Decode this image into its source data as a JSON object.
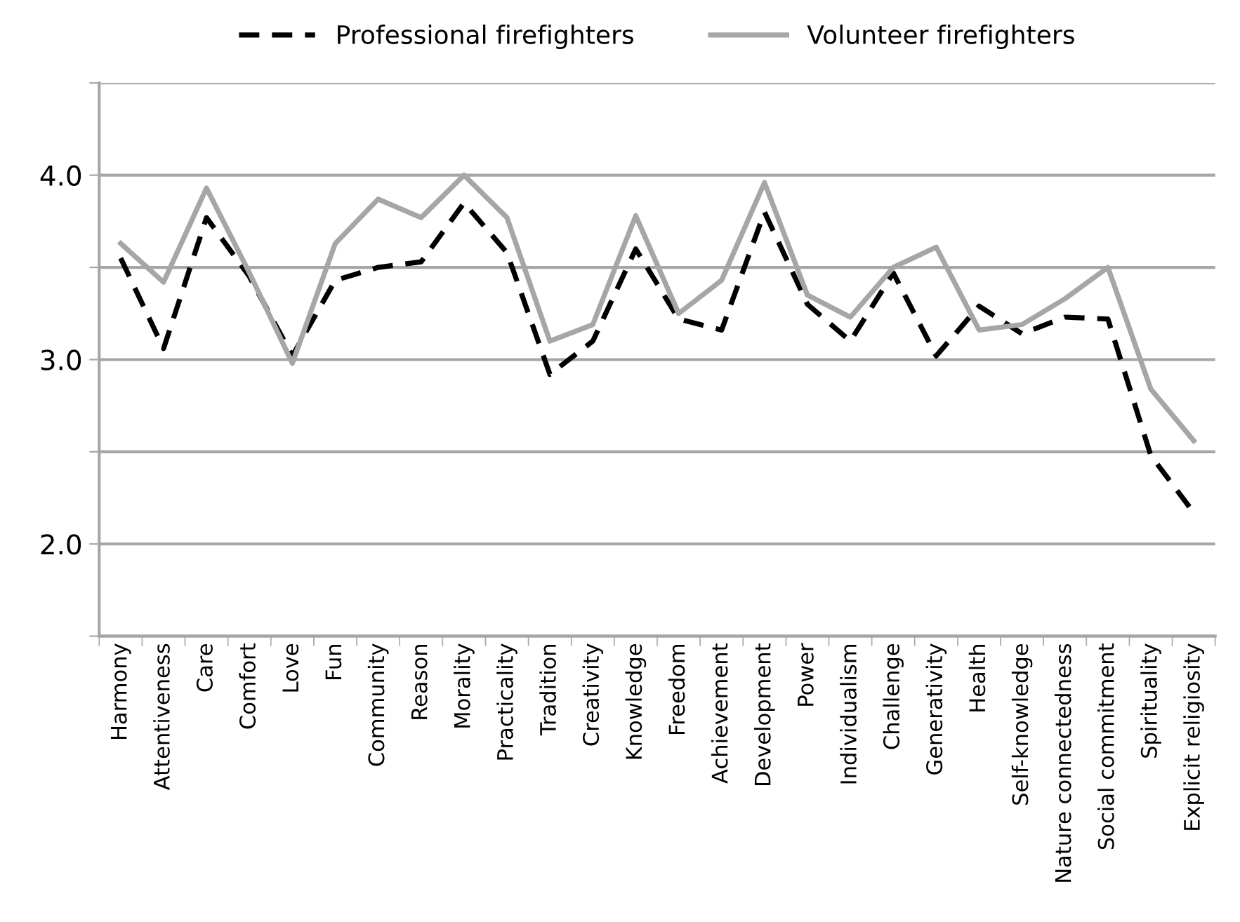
{
  "chart_data": {
    "type": "line",
    "categories": [
      "Harmony",
      "Attentiveness",
      "Care",
      "Comfort",
      "Love",
      "Fun",
      "Community",
      "Reason",
      "Morality",
      "Practicality",
      "Tradition",
      "Creativity",
      "Knowledge",
      "Freedom",
      "Achievement",
      "Development",
      "Power",
      "Individualism",
      "Challenge",
      "Generativity",
      "Health",
      "Self-knowledge",
      "Nature connectedness",
      "Social commitment",
      "Spirituality",
      "Explicit religiosity"
    ],
    "series": [
      {
        "name": "Professional firefighters",
        "color": "#000000",
        "line_style": "dashed",
        "values": [
          3.55,
          3.06,
          3.77,
          3.45,
          3.02,
          3.43,
          3.5,
          3.53,
          3.85,
          3.58,
          2.92,
          3.1,
          3.6,
          3.22,
          3.16,
          3.8,
          3.3,
          3.1,
          3.47,
          3.02,
          3.29,
          3.14,
          3.23,
          3.22,
          2.48,
          2.17
        ]
      },
      {
        "name": "Volunteer firefighters",
        "color": "#a6a6a6",
        "line_style": "solid",
        "values": [
          3.63,
          3.42,
          3.93,
          3.47,
          2.98,
          3.63,
          3.87,
          3.77,
          4.0,
          3.77,
          3.1,
          3.19,
          3.78,
          3.25,
          3.43,
          3.96,
          3.35,
          3.23,
          3.5,
          3.61,
          3.16,
          3.19,
          3.33,
          3.5,
          2.84,
          2.56
        ]
      }
    ],
    "ylim": [
      1.5,
      4.5
    ],
    "yticks": [
      {
        "value": 1.5,
        "label": null
      },
      {
        "value": 2.0,
        "label": "2.0"
      },
      {
        "value": 2.5,
        "label": null
      },
      {
        "value": 3.0,
        "label": "3.0"
      },
      {
        "value": 3.5,
        "label": null
      },
      {
        "value": 4.0,
        "label": "4.0"
      },
      {
        "value": 4.5,
        "label": null
      }
    ],
    "grid": "y",
    "legend": "top",
    "marker": "none"
  }
}
